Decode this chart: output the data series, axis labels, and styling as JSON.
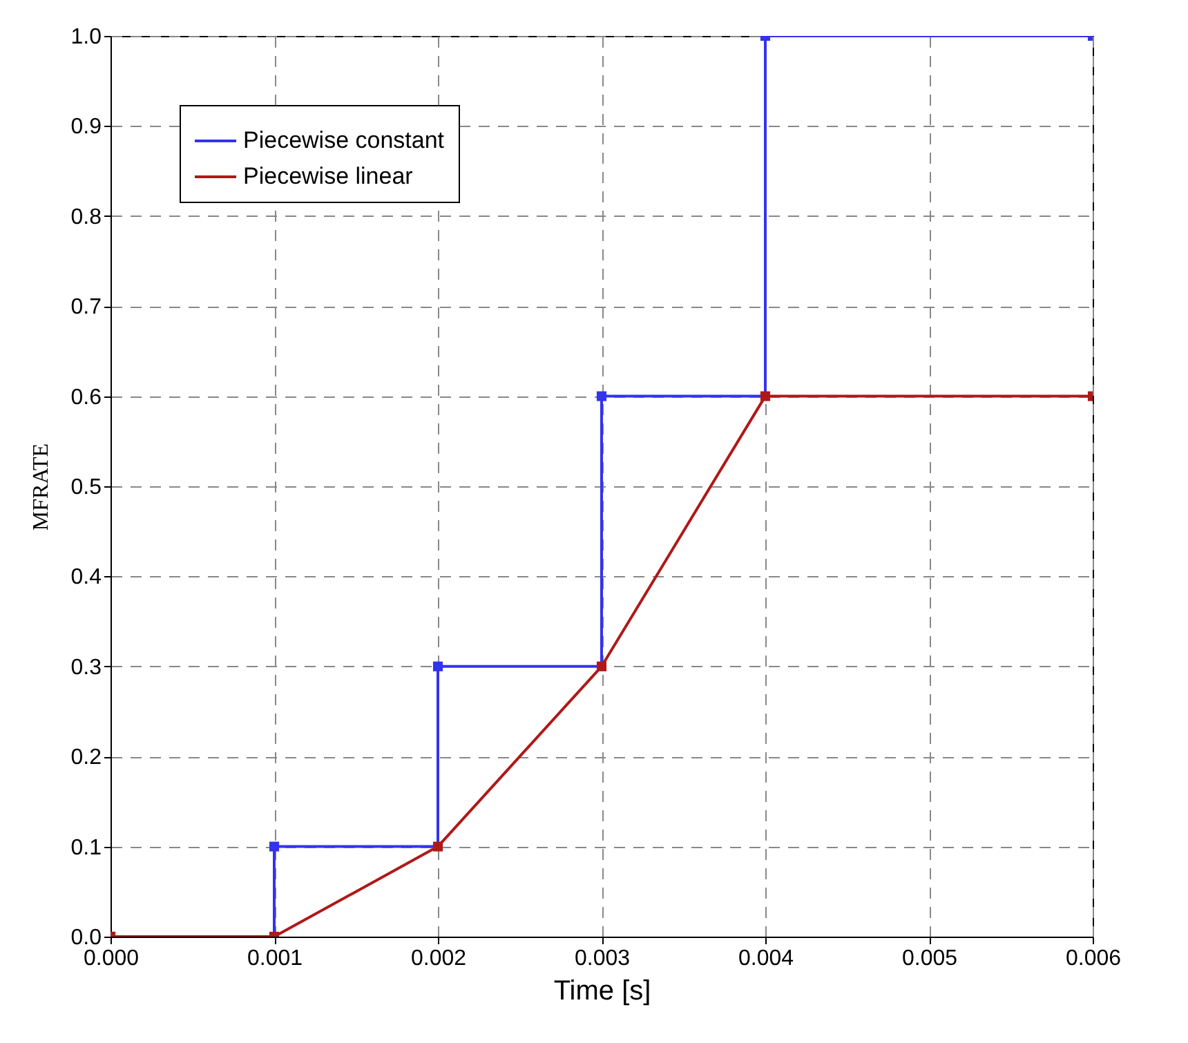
{
  "chart_data": {
    "type": "line",
    "xlabel": "Time [s]",
    "ylabel": "MFRATE",
    "xlim": [
      0,
      0.006
    ],
    "ylim": [
      0,
      1
    ],
    "xticks": [
      {
        "value": 0,
        "label": "0.000"
      },
      {
        "value": 0.001,
        "label": "0.001"
      },
      {
        "value": 0.002,
        "label": "0.002"
      },
      {
        "value": 0.003,
        "label": "0.003"
      },
      {
        "value": 0.004,
        "label": "0.004"
      },
      {
        "value": 0.005,
        "label": "0.005"
      },
      {
        "value": 0.006,
        "label": "0.006"
      }
    ],
    "yticks": [
      {
        "value": 0,
        "label": "0.0"
      },
      {
        "value": 0.1,
        "label": "0.1"
      },
      {
        "value": 0.2,
        "label": "0.2"
      },
      {
        "value": 0.3,
        "label": "0.3"
      },
      {
        "value": 0.4,
        "label": "0.4"
      },
      {
        "value": 0.5,
        "label": "0.5"
      },
      {
        "value": 0.6,
        "label": "0.6"
      },
      {
        "value": 0.7,
        "label": "0.7"
      },
      {
        "value": 0.8,
        "label": "0.8"
      },
      {
        "value": 0.9,
        "label": "0.9"
      },
      {
        "value": 1,
        "label": "1.0"
      }
    ],
    "grid": true,
    "legend": "top left",
    "marker": "square",
    "line_style": "solid",
    "series": [
      {
        "name": "Piecewise constant",
        "type": "step",
        "color": "#3333ee",
        "x": [
          0,
          0.001,
          0.002,
          0.003,
          0.004,
          0.006
        ],
        "values": [
          0,
          0.1,
          0.3,
          0.6,
          1,
          1
        ]
      },
      {
        "name": "Piecewise linear",
        "type": "line",
        "color": "#b01818",
        "x": [
          0,
          0.001,
          0.002,
          0.003,
          0.004,
          0.006
        ],
        "values": [
          0,
          0,
          0.1,
          0.3,
          0.6,
          0.6
        ]
      }
    ]
  }
}
